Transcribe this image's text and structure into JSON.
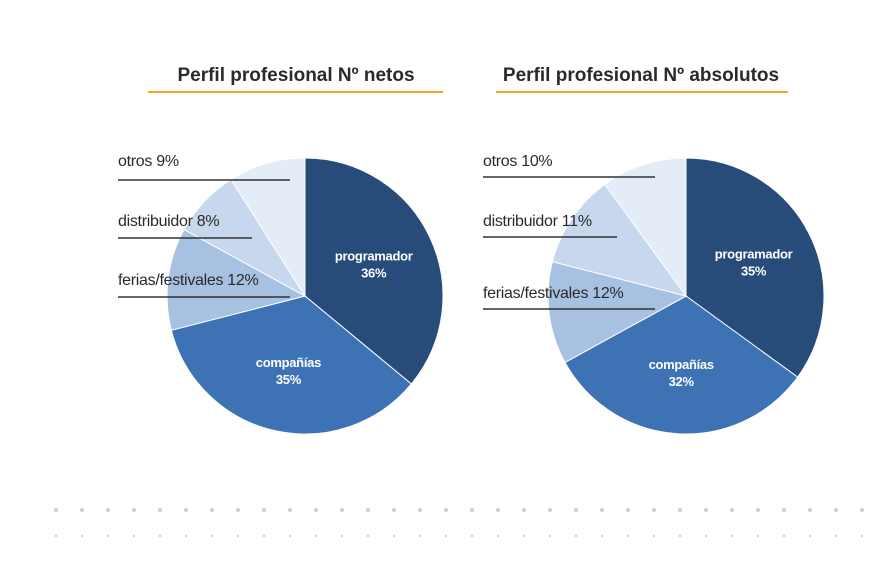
{
  "colors": {
    "programador": "#284c79",
    "compañías": "#3d72b5",
    "ferias/festivales": "#a7c1e2",
    "distribuidor": "#c7d8ee",
    "otros": "#e3ecf7",
    "title_rule": "#f0a830",
    "callout_rule": "#333333",
    "divider_dots": "#cfcfcf"
  },
  "chart_data": [
    {
      "type": "pie",
      "title": "Perfil profesional Nº netos",
      "slices": [
        {
          "key": "programador",
          "label": "programador",
          "value": 36,
          "value_text": "36%",
          "color": "#284c79",
          "labeled": "inside"
        },
        {
          "key": "compañías",
          "label": "compañías",
          "value": 35,
          "value_text": "35%",
          "color": "#3d72b5",
          "labeled": "inside"
        },
        {
          "key": "ferias/festivales",
          "label": "ferias/festivales",
          "value": 12,
          "value_text": "12%",
          "color": "#a7c1e2",
          "labeled": "callout"
        },
        {
          "key": "distribuidor",
          "label": "distribuidor",
          "value": 8,
          "value_text": "8%",
          "color": "#c7d8ee",
          "labeled": "callout"
        },
        {
          "key": "otros",
          "label": "otros",
          "value": 9,
          "value_text": "9%",
          "color": "#e3ecf7",
          "labeled": "callout"
        }
      ],
      "callouts": [
        "otros 9%",
        "distribuidor 8%",
        "ferias/festivales 12%"
      ]
    },
    {
      "type": "pie",
      "title": "Perfil profesional Nº absolutos",
      "slices": [
        {
          "key": "programador",
          "label": "programador",
          "value": 35,
          "value_text": "35%",
          "color": "#284c79",
          "labeled": "inside"
        },
        {
          "key": "compañías",
          "label": "compañías",
          "value": 32,
          "value_text": "32%",
          "color": "#3d72b5",
          "labeled": "inside"
        },
        {
          "key": "ferias/festivales",
          "label": "ferias/festivales",
          "value": 12,
          "value_text": "12%",
          "color": "#a7c1e2",
          "labeled": "callout"
        },
        {
          "key": "distribuidor",
          "label": "distribuidor",
          "value": 11,
          "value_text": "11%",
          "color": "#c7d8ee",
          "labeled": "callout"
        },
        {
          "key": "otros",
          "label": "otros",
          "value": 10,
          "value_text": "10%",
          "color": "#e3ecf7",
          "labeled": "callout"
        }
      ],
      "callouts": [
        "otros 10%",
        "distribuidor 11%",
        "ferias/festivales 12%"
      ]
    }
  ]
}
